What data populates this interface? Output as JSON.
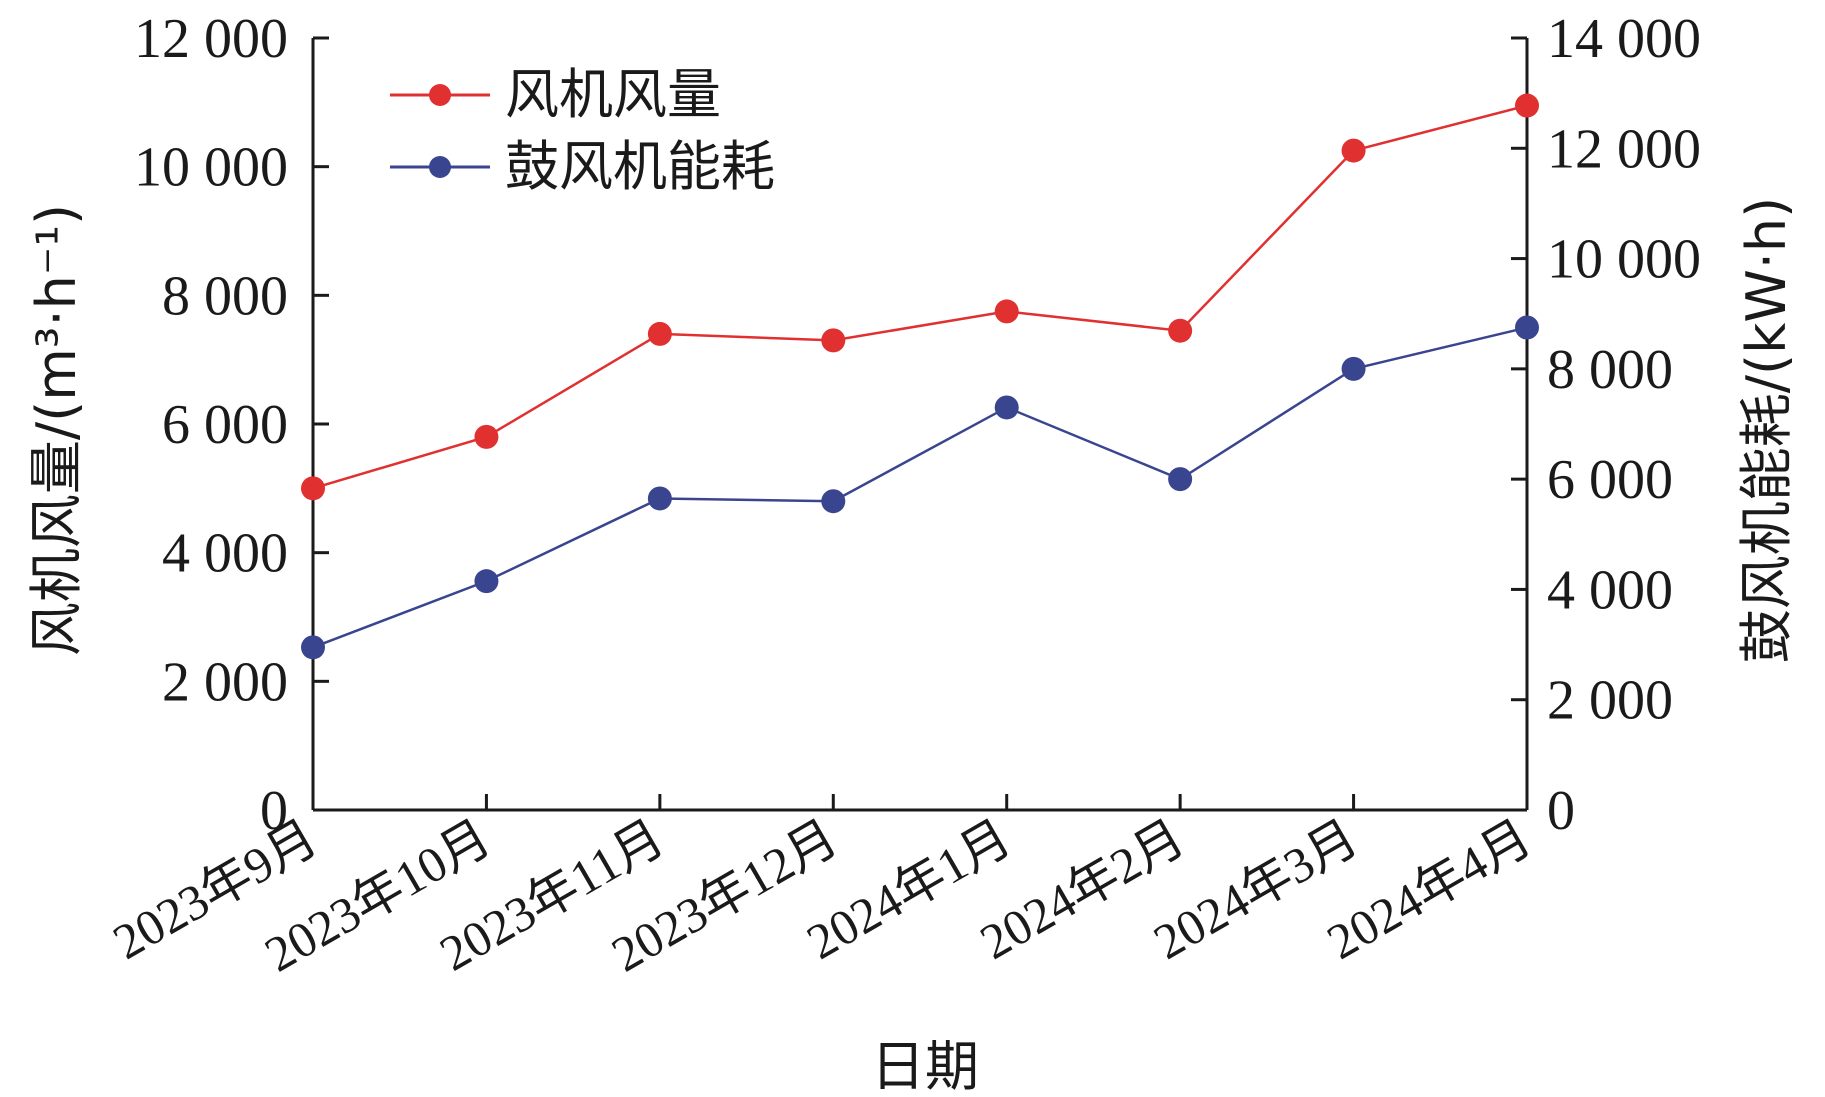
{
  "chart_data": {
    "type": "line",
    "categories": [
      "2023年9月",
      "2023年10月",
      "2023年11月",
      "2023年12月",
      "2024年1月",
      "2024年2月",
      "2024年3月",
      "2024年4月"
    ],
    "xlabel": "日期",
    "y_left": {
      "label": "风机风量/(m³·h⁻¹)",
      "ylim": [
        0,
        12000
      ],
      "ticks": [
        "0",
        "2 000",
        "4 000",
        "6 000",
        "8 000",
        "10 000",
        "12 000"
      ]
    },
    "y_right": {
      "label": "鼓风机能耗/(kW·h)",
      "ylim": [
        0,
        14000
      ],
      "ticks": [
        "0",
        "2 000",
        "4 000",
        "6 000",
        "8 000",
        "10 000",
        "12 000",
        "14 000"
      ]
    },
    "series": [
      {
        "name": "风机风量",
        "axis": "left",
        "color": "#e03030",
        "values": [
          5000,
          5800,
          7400,
          7300,
          7750,
          7450,
          10250,
          10950
        ]
      },
      {
        "name": "鼓风机能耗",
        "axis": "right",
        "color": "#3a4590",
        "values": [
          2950,
          4150,
          5650,
          5600,
          7300,
          6000,
          8000,
          8750
        ]
      }
    ],
    "legend": "top-left",
    "grid": false
  }
}
